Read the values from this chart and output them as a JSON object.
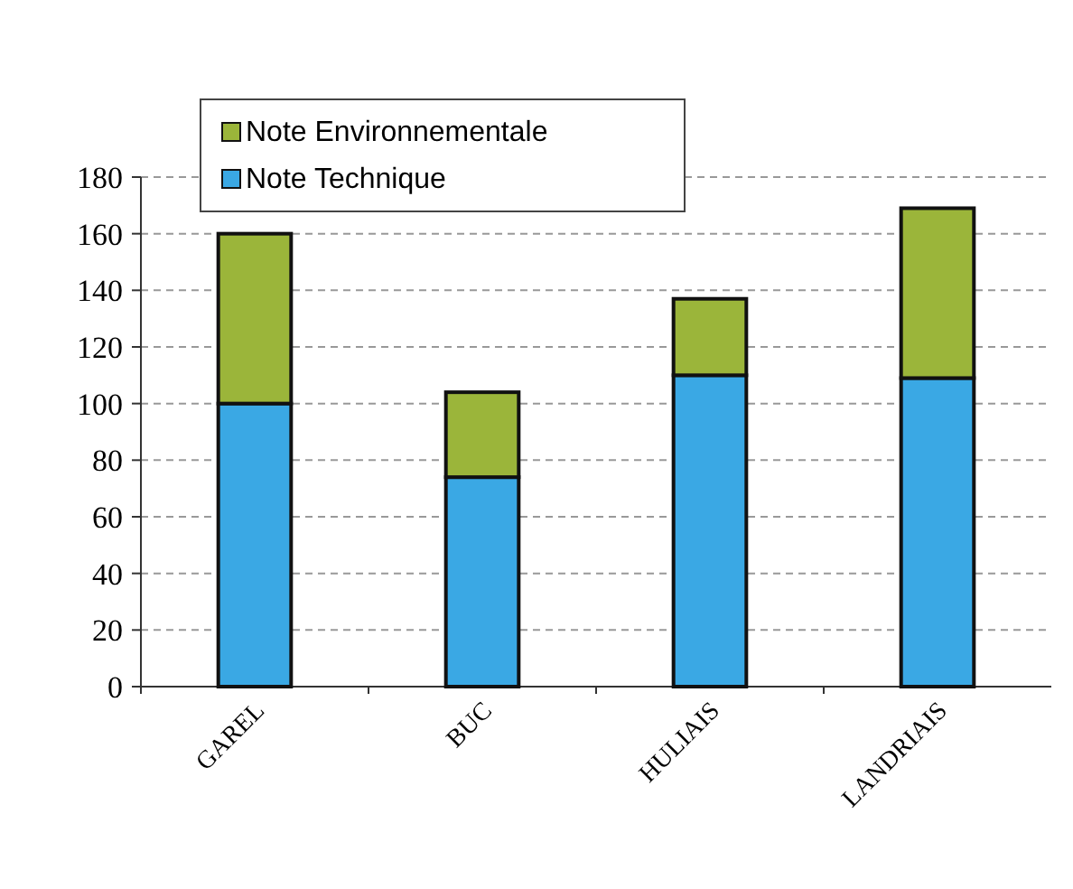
{
  "chart_data": {
    "type": "bar",
    "stacked": true,
    "categories": [
      "GAREL",
      "BUC",
      "HULIAIS",
      "LANDRIAIS"
    ],
    "series": [
      {
        "name": "Note Technique",
        "color": "#3aa8e4",
        "values": [
          100,
          74,
          110,
          109
        ]
      },
      {
        "name": "Note Environnementale",
        "color": "#9bb53a",
        "values": [
          60,
          30,
          27,
          60
        ]
      }
    ],
    "ylim": [
      0,
      180
    ],
    "yticks": [
      0,
      20,
      40,
      60,
      80,
      100,
      120,
      140,
      160,
      180
    ],
    "grid": "y",
    "legend": "top left"
  }
}
